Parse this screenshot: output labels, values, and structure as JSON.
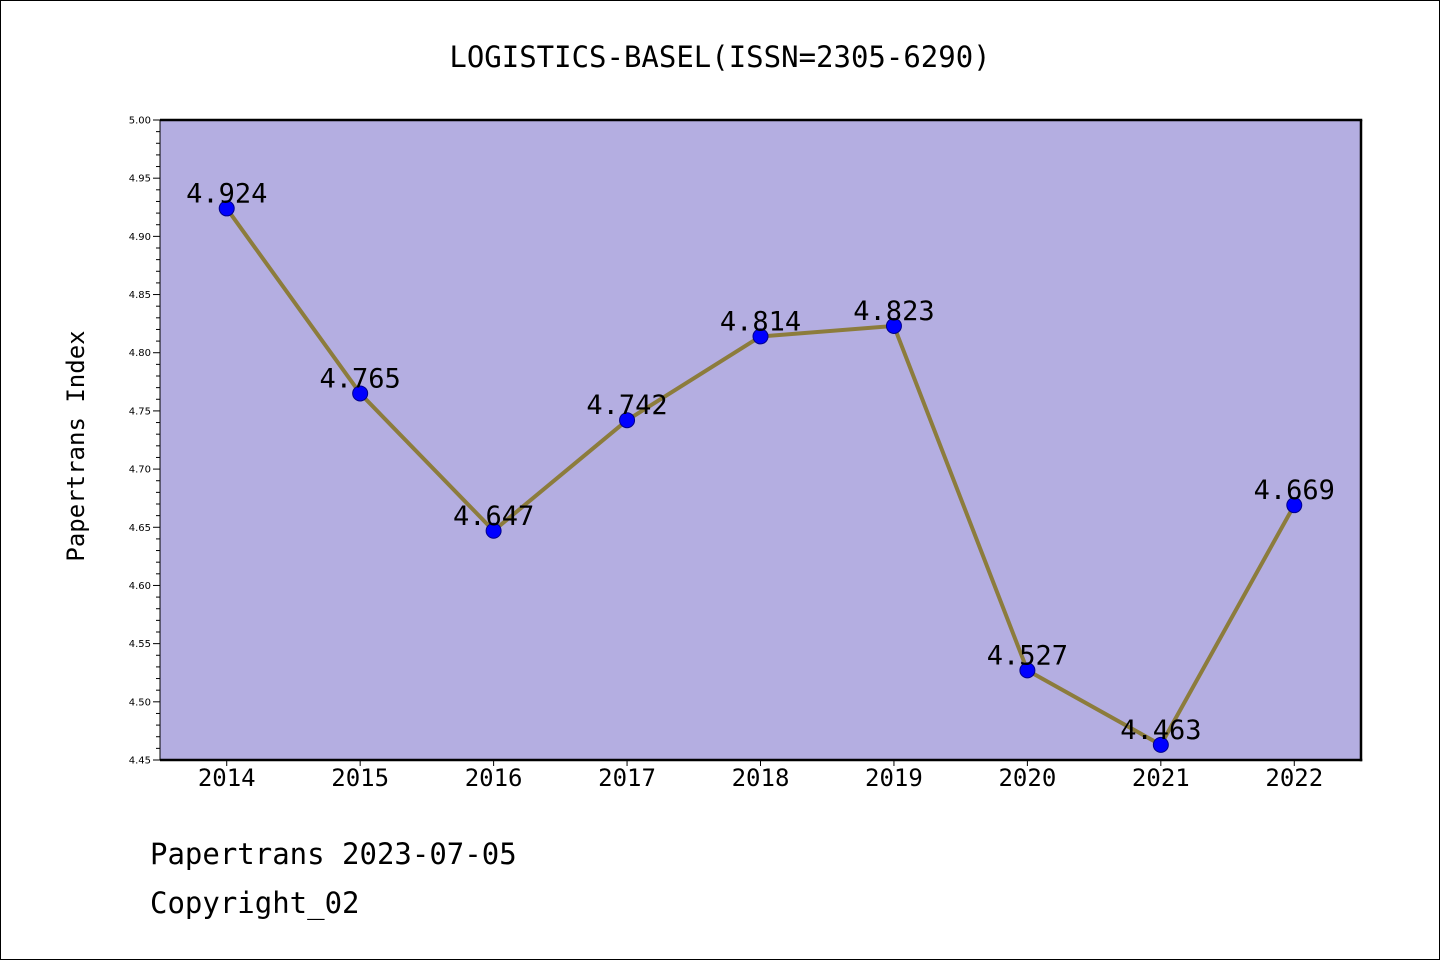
{
  "chart_data": {
    "type": "line",
    "title": "LOGISTICS-BASEL(ISSN=2305-6290)",
    "xlabel": "",
    "ylabel": "Papertrans Index",
    "categories": [
      "2014",
      "2015",
      "2016",
      "2017",
      "2018",
      "2019",
      "2020",
      "2021",
      "2022"
    ],
    "series": [
      {
        "values": [
          4.924,
          4.765,
          4.647,
          4.742,
          4.814,
          4.823,
          4.527,
          4.463,
          4.669
        ]
      }
    ],
    "ylim": [
      4.45,
      5.0
    ],
    "yticks": [
      "4.45",
      "4.50",
      "4.55",
      "4.60",
      "4.65",
      "4.70",
      "4.75",
      "4.80",
      "4.85",
      "4.90",
      "4.95",
      "5.00"
    ],
    "grid": false,
    "data_labels_shown": true,
    "colors": {
      "plot_background": "#b4aee1",
      "line": "#8c7c3c",
      "marker": "#0000ff",
      "marker_edge": "#00008b",
      "frame": "#000000"
    }
  },
  "footer": {
    "line1": "Papertrans 2023-07-05",
    "line2": "Copyright_02"
  }
}
